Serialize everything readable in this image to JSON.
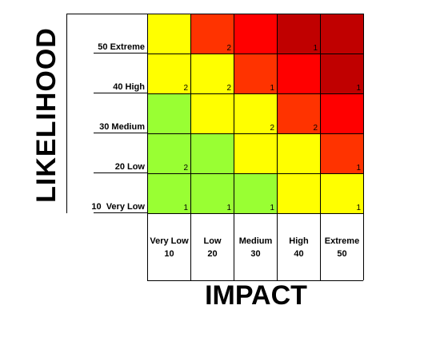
{
  "chart_data": {
    "type": "heatmap",
    "xlabel": "IMPACT",
    "ylabel": "LIKELIHOOD",
    "x_categories": [
      {
        "name": "Very Low",
        "value": "10"
      },
      {
        "name": "Low",
        "value": "20"
      },
      {
        "name": "Medium",
        "value": "30"
      },
      {
        "name": "High",
        "value": "40"
      },
      {
        "name": "Extreme",
        "value": "50"
      }
    ],
    "y_categories": [
      "50 Extreme",
      "40 High",
      "30 Medium",
      "20 Low",
      "10  Very Low"
    ],
    "colors": {
      "green": "#99ff33",
      "yellow": "#ffff00",
      "orange": "#ff3300",
      "red": "#ff0000",
      "darkred": "#c00000"
    },
    "cells": [
      [
        {
          "color": "yellow",
          "count": ""
        },
        {
          "color": "orange",
          "count": "2"
        },
        {
          "color": "red",
          "count": ""
        },
        {
          "color": "darkred",
          "count": "1"
        },
        {
          "color": "darkred",
          "count": ""
        }
      ],
      [
        {
          "color": "yellow",
          "count": "2"
        },
        {
          "color": "yellow",
          "count": "2"
        },
        {
          "color": "orange",
          "count": "1"
        },
        {
          "color": "red",
          "count": ""
        },
        {
          "color": "darkred",
          "count": "1"
        }
      ],
      [
        {
          "color": "green",
          "count": ""
        },
        {
          "color": "yellow",
          "count": ""
        },
        {
          "color": "yellow",
          "count": "2"
        },
        {
          "color": "orange",
          "count": "2"
        },
        {
          "color": "red",
          "count": ""
        }
      ],
      [
        {
          "color": "green",
          "count": "2"
        },
        {
          "color": "green",
          "count": ""
        },
        {
          "color": "yellow",
          "count": ""
        },
        {
          "color": "yellow",
          "count": ""
        },
        {
          "color": "orange",
          "count": "1"
        }
      ],
      [
        {
          "color": "green",
          "count": "1"
        },
        {
          "color": "green",
          "count": "1"
        },
        {
          "color": "green",
          "count": "1"
        },
        {
          "color": "yellow",
          "count": ""
        },
        {
          "color": "yellow",
          "count": "1"
        }
      ]
    ]
  }
}
